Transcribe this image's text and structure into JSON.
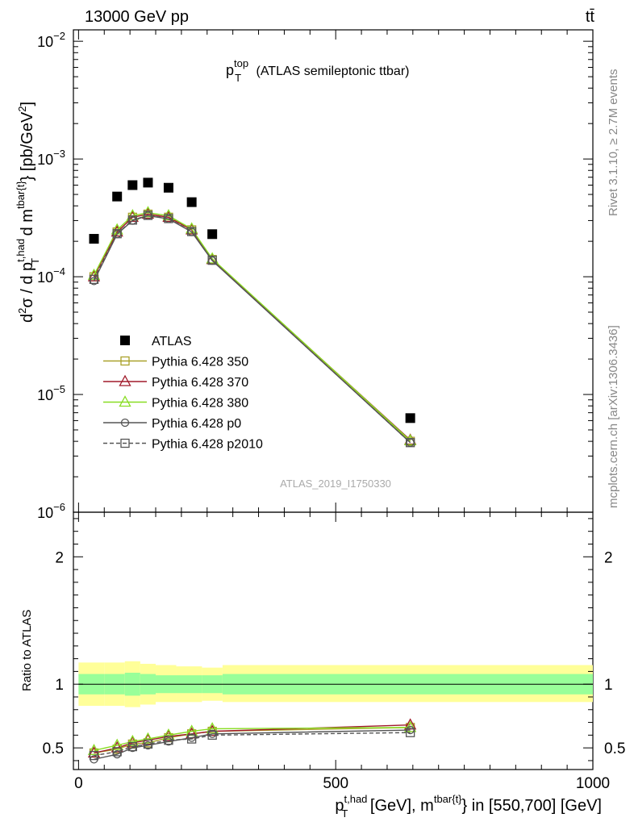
{
  "header": {
    "left": "13000 GeV pp",
    "right": "tt̄"
  },
  "main_title": {
    "prefix": "p",
    "sup": "top",
    "sub": "T",
    "rest": " (ATLAS semileptonic ttbar)"
  },
  "side_labels": {
    "rivet": "Rivet 3.1.10, ≥ 2.7M events",
    "mcplots": "mcplots.cern.ch [arXiv:1306.3436]"
  },
  "watermark": "ATLAS_2019_I1750330",
  "ylabel_top": "d²σ / d p_T^{t,had} d m^{tbar{t}} [pb/GeV²]",
  "ylabel_bottom": "Ratio to ATLAS",
  "xlabel": "p_T^{t,had} [GeV], m^{tbar{t}} in [550,700] [GeV]",
  "colors": {
    "atlas": "#000000",
    "p350": "#aaa12a",
    "p370": "#a01a2a",
    "p380": "#88dd22",
    "p0": "#555555",
    "p2010": "#555555",
    "band_inner": "#99ff99",
    "band_outer": "#ffff99"
  },
  "chart_data": [
    {
      "type": "line",
      "panel": "main",
      "x": [
        30,
        75,
        105,
        135,
        175,
        220,
        260,
        645
      ],
      "xlim": [
        -10,
        1000
      ],
      "ylim": [
        1e-06,
        0.0125
      ],
      "yscale": "log",
      "yticks": [
        {
          "value": 1e-06,
          "base": "10",
          "exp": "−6"
        },
        {
          "value": 1e-05,
          "base": "10",
          "exp": "−5"
        },
        {
          "value": 0.0001,
          "base": "10",
          "exp": "−4"
        },
        {
          "value": 0.001,
          "base": "10",
          "exp": "−3"
        },
        {
          "value": 0.01,
          "base": "10",
          "exp": "−2"
        }
      ],
      "legend_position": "left-middle",
      "series": [
        {
          "name": "ATLAS",
          "key": "atlas",
          "marker": "square-filled",
          "values": [
            0.00021,
            0.00048,
            0.0006,
            0.00063,
            0.00057,
            0.00043,
            0.00023,
            6.3e-06
          ]
        },
        {
          "name": "Pythia 6.428 350",
          "key": "p350",
          "marker": "square-open",
          "dash": "",
          "values": [
            0.0001,
            0.00024,
            0.00032,
            0.00034,
            0.00032,
            0.00025,
            0.00014,
            4e-06
          ]
        },
        {
          "name": "Pythia 6.428 370",
          "key": "p370",
          "marker": "triangle-open",
          "dash": "",
          "values": [
            0.0001,
            0.00024,
            0.00032,
            0.00034,
            0.00032,
            0.00025,
            0.00014,
            4.1e-06
          ]
        },
        {
          "name": "Pythia 6.428 380",
          "key": "p380",
          "marker": "triangle-open",
          "dash": "",
          "values": [
            0.000103,
            0.00025,
            0.00033,
            0.00035,
            0.00033,
            0.000255,
            0.000142,
            4.05e-06
          ]
        },
        {
          "name": "Pythia 6.428 p0",
          "key": "p0",
          "marker": "circle-open",
          "dash": "",
          "values": [
            9.2e-05,
            0.00023,
            0.0003,
            0.00033,
            0.00031,
            0.00024,
            0.000137,
            3.9e-06
          ]
        },
        {
          "name": "Pythia 6.428 p2010",
          "key": "p2010",
          "marker": "square-open",
          "dash": "5,3",
          "values": [
            9.5e-05,
            0.000232,
            0.000303,
            0.000332,
            0.000312,
            0.000242,
            0.000138,
            3.9e-06
          ]
        }
      ]
    },
    {
      "type": "line",
      "panel": "ratio",
      "x": [
        30,
        75,
        105,
        135,
        175,
        220,
        260,
        645
      ],
      "xlim": [
        -10,
        1000
      ],
      "ylim": [
        0.33,
        2.35
      ],
      "yticks": [
        {
          "value": 0.5,
          "label": "0.5"
        },
        {
          "value": 1,
          "label": "1"
        },
        {
          "value": 2,
          "label": "2"
        }
      ],
      "xticks": [
        {
          "value": 0,
          "label": "0"
        },
        {
          "value": 500,
          "label": "500"
        },
        {
          "value": 1000,
          "label": "1000"
        }
      ],
      "band": {
        "edges": [
          0,
          50,
          90,
          120,
          150,
          190,
          240,
          280,
          1000
        ],
        "inner_lo": [
          0.92,
          0.92,
          0.91,
          0.92,
          0.93,
          0.93,
          0.93,
          0.92
        ],
        "inner_hi": [
          1.08,
          1.08,
          1.09,
          1.08,
          1.07,
          1.07,
          1.07,
          1.08
        ],
        "outer_lo": [
          0.83,
          0.83,
          0.82,
          0.84,
          0.86,
          0.86,
          0.87,
          0.86
        ],
        "outer_hi": [
          1.17,
          1.17,
          1.18,
          1.16,
          1.15,
          1.14,
          1.13,
          1.15
        ]
      },
      "series": [
        {
          "key": "p350",
          "marker": "square-open",
          "dash": "",
          "values": [
            0.46,
            0.49,
            0.53,
            0.54,
            0.58,
            0.61,
            0.63,
            0.66
          ]
        },
        {
          "key": "p370",
          "marker": "triangle-open",
          "dash": "",
          "values": [
            0.46,
            0.5,
            0.54,
            0.56,
            0.59,
            0.61,
            0.63,
            0.68
          ]
        },
        {
          "key": "p380",
          "marker": "triangle-open",
          "dash": "",
          "values": [
            0.48,
            0.52,
            0.55,
            0.57,
            0.6,
            0.63,
            0.65,
            0.66
          ]
        },
        {
          "key": "p0",
          "marker": "circle-open",
          "dash": "",
          "values": [
            0.41,
            0.45,
            0.5,
            0.52,
            0.55,
            0.58,
            0.61,
            0.64
          ]
        },
        {
          "key": "p2010",
          "marker": "square-open",
          "dash": "5,3",
          "values": [
            0.44,
            0.47,
            0.51,
            0.53,
            0.56,
            0.57,
            0.6,
            0.62
          ]
        }
      ]
    }
  ]
}
